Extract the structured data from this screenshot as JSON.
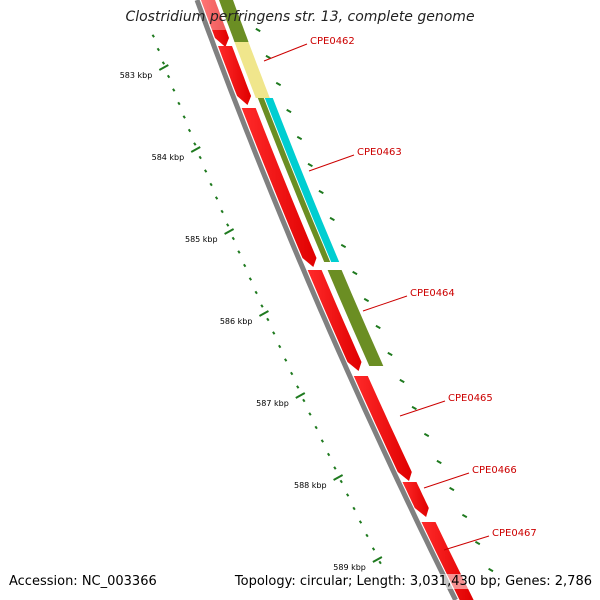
{
  "header": {
    "title": "Clostridium perfringens str. 13, complete genome"
  },
  "footer": {
    "accession": "Accession: NC_003366",
    "summary": "Topology: circular; Length: 3,031,430 bp; Genes: 2,786"
  },
  "colors": {
    "cds": "#ff0000",
    "backbone": "#808080",
    "tick": "#1f7a1f",
    "label_line": "#cc0000",
    "track_olive": "#6b8e23",
    "track_khaki": "#f0e68c",
    "track_cyan": "#00ced1"
  },
  "ruler": {
    "labels": [
      "583 kbp",
      "584 kbp",
      "585 kbp",
      "586 kbp",
      "587 kbp",
      "588 kbp",
      "589 kbp"
    ]
  },
  "genes": [
    {
      "name": "CPE0462"
    },
    {
      "name": "CPE0463"
    },
    {
      "name": "CPE0464"
    },
    {
      "name": "CPE0465"
    },
    {
      "name": "CPE0466"
    },
    {
      "name": "CPE0467"
    }
  ]
}
